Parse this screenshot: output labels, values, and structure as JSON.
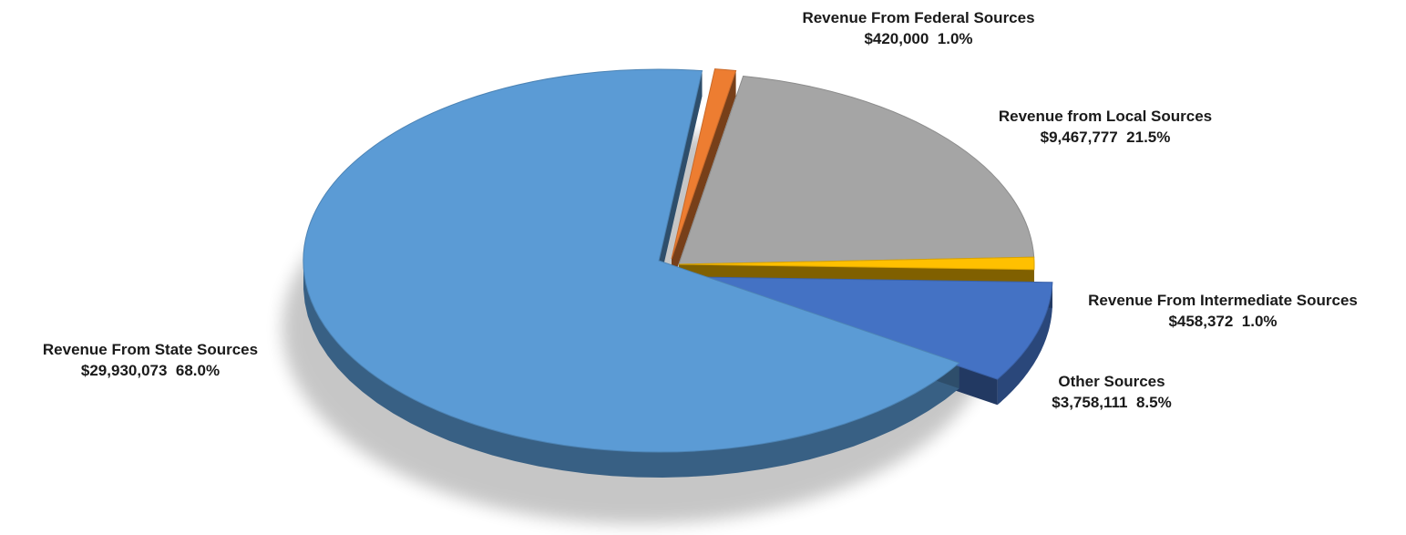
{
  "chart_data": {
    "type": "pie",
    "title": "",
    "slices": [
      {
        "name": "Revenue From Federal Sources",
        "value": 420000,
        "value_label": "$420,000",
        "percent": 1.0,
        "percent_label": "1.0%",
        "color": "#ED7D31",
        "exploded": true
      },
      {
        "name": "Revenue from Local Sources",
        "value": 9467777,
        "value_label": "$9,467,777",
        "percent": 21.5,
        "percent_label": "21.5%",
        "color": "#A5A5A5",
        "exploded": false
      },
      {
        "name": "Revenue From Intermediate Sources",
        "value": 458372,
        "value_label": "$458,372",
        "percent": 1.0,
        "percent_label": "1.0%",
        "color": "#FFC000",
        "exploded": false
      },
      {
        "name": "Other Sources",
        "value": 3758111,
        "value_label": "$3,758,111",
        "percent": 8.5,
        "percent_label": "8.5%",
        "color": "#4472C4",
        "exploded": true
      },
      {
        "name": "Revenue From State Sources",
        "value": 29930073,
        "value_label": "$29,930,073",
        "percent": 68.0,
        "percent_label": "68.0%",
        "color": "#5B9BD5",
        "exploded": true
      }
    ],
    "legend": "none",
    "style": "3d-exploded-pie"
  }
}
